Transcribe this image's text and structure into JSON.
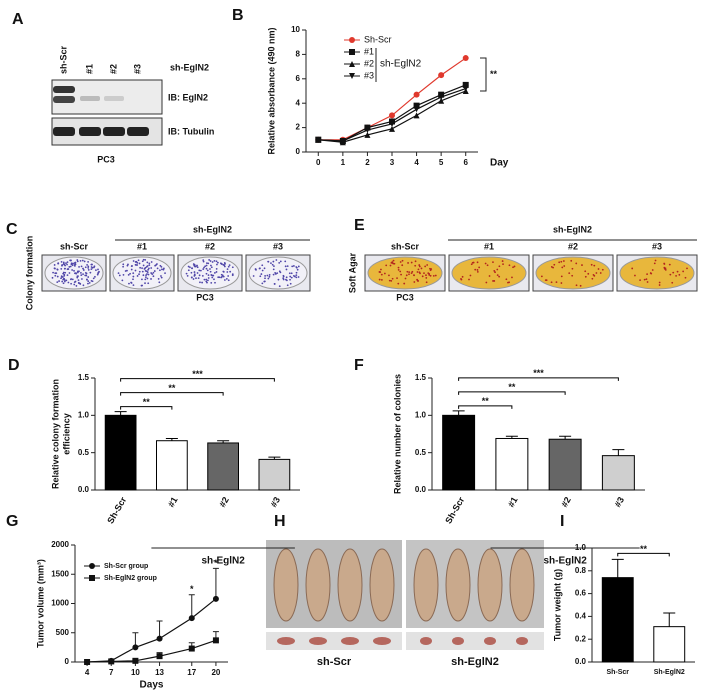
{
  "panel_labels": [
    "A",
    "B",
    "C",
    "D",
    "E",
    "F",
    "G",
    "H",
    "I"
  ],
  "blot": {
    "lanes": [
      "sh-Scr",
      "#1",
      "#2",
      "#3"
    ],
    "group": "sh-EglN2",
    "rows": [
      "IB: EglN2",
      "IB: Tubulin"
    ],
    "cell": "PC3"
  },
  "colony": {
    "ylabel": "Colony formation",
    "group": "sh-EglN2",
    "lanes": [
      "sh-Scr",
      "#1",
      "#2",
      "#3"
    ],
    "cell": "PC3"
  },
  "agar": {
    "ylabel": "Soft Agar",
    "group": "sh-EglN2",
    "lanes": [
      "sh-Scr",
      "#1",
      "#2",
      "#3"
    ],
    "cell": "PC3"
  },
  "xenograft": {
    "groups": [
      "sh-Scr",
      "sh-EglN2"
    ]
  },
  "chart_data": [
    {
      "type": "line",
      "ylabel": [
        "Relative absorbance (490 nm)"
      ],
      "xlabel": "Day",
      "x": [
        0,
        1,
        2,
        3,
        4,
        5,
        6
      ],
      "xlim": [
        -0.5,
        6.5
      ],
      "xticks": [
        0,
        1,
        2,
        3,
        4,
        5,
        6
      ],
      "ylim": [
        0,
        10
      ],
      "yticks": [
        0,
        2,
        4,
        6,
        8,
        10
      ],
      "series": [
        {
          "name": "Sh-Scr",
          "color": "#e0392d",
          "marker": "circle",
          "values": [
            1,
            1,
            2,
            3,
            4.7,
            6.3,
            7.7
          ]
        },
        {
          "name": "#1",
          "color": "#111111",
          "marker": "square",
          "values": [
            1,
            0.9,
            2.0,
            2.5,
            3.8,
            4.7,
            5.5
          ]
        },
        {
          "name": "#2",
          "color": "#111111",
          "marker": "triangle",
          "values": [
            1,
            0.8,
            1.4,
            1.9,
            3.0,
            4.2,
            5.0
          ]
        },
        {
          "name": "#3",
          "color": "#111111",
          "marker": "triangle-down",
          "values": [
            1,
            0.9,
            1.8,
            2.3,
            3.5,
            4.5,
            5.2
          ]
        }
      ],
      "legend_group": "sh-EglN2",
      "annotation": "**"
    },
    {
      "type": "bar",
      "ylabel": [
        "Relative colony formation",
        "efficiency"
      ],
      "categories": [
        "Sh-Scr",
        "#1",
        "#2",
        "#3"
      ],
      "values": [
        1.0,
        0.66,
        0.63,
        0.41
      ],
      "errors": [
        0.05,
        0.03,
        0.03,
        0.03
      ],
      "colors": [
        "#000000",
        "#ffffff",
        "#666666",
        "#cfcfcf"
      ],
      "ylim": [
        0,
        1.5
      ],
      "yticks": [
        {
          "value": 0,
          "label": "0.0"
        },
        0.5,
        {
          "value": 1,
          "label": "1.0"
        },
        1.5
      ],
      "annotations": [
        {
          "text": "**",
          "between": [
            "Sh-Scr",
            "#1"
          ]
        },
        {
          "text": "**",
          "between": [
            "Sh-Scr",
            "#2"
          ]
        },
        {
          "text": "***",
          "between": [
            "Sh-Scr",
            "#3"
          ]
        }
      ],
      "group": {
        "label": "sh-EglN2",
        "members": [
          "#1",
          "#2",
          "#3"
        ]
      }
    },
    {
      "type": "bar",
      "ylabel": [
        "Relative number of colonies"
      ],
      "categories": [
        "Sh-Scr",
        "#1",
        "#2",
        "#3"
      ],
      "values": [
        1.0,
        0.69,
        0.68,
        0.46
      ],
      "errors": [
        0.06,
        0.03,
        0.04,
        0.08
      ],
      "colors": [
        "#000000",
        "#ffffff",
        "#666666",
        "#cfcfcf"
      ],
      "ylim": [
        0,
        1.5
      ],
      "yticks": [
        {
          "value": 0,
          "label": "0.0"
        },
        0.5,
        {
          "value": 1,
          "label": "1.0"
        },
        1.5
      ],
      "annotations": [
        {
          "text": "**",
          "between": [
            "Sh-Scr",
            "#1"
          ]
        },
        {
          "text": "**",
          "between": [
            "Sh-Scr",
            "#2"
          ]
        },
        {
          "text": "***",
          "between": [
            "Sh-Scr",
            "#3"
          ]
        }
      ],
      "group": {
        "label": "sh-EglN2",
        "members": [
          "#1",
          "#2",
          "#3"
        ]
      }
    },
    {
      "type": "line",
      "ylabel": [
        "Tumor volume (mm³)"
      ],
      "xlabel": "Days",
      "x": [
        4,
        7,
        10,
        13,
        17,
        20
      ],
      "xlim": [
        2.5,
        21.5
      ],
      "xticks": [
        4,
        7,
        10,
        13,
        17,
        20
      ],
      "ylim": [
        0,
        2000
      ],
      "yticks": [
        0,
        500,
        1000,
        1500,
        2000
      ],
      "series": [
        {
          "name": "Sh-Scr group",
          "color": "#111111",
          "marker": "circle",
          "values": [
            0,
            20,
            250,
            400,
            750,
            1080
          ],
          "errors": [
            0,
            10,
            250,
            300,
            400,
            520
          ]
        },
        {
          "name": "Sh-EglN2 group",
          "color": "#111111",
          "marker": "square",
          "values": [
            0,
            10,
            20,
            100,
            230,
            370
          ],
          "errors": [
            0,
            5,
            10,
            60,
            100,
            150
          ]
        }
      ],
      "annotations": [
        {
          "text": "*",
          "x": 17
        },
        {
          "text": "*",
          "x": 20
        }
      ]
    },
    {
      "type": "bar",
      "ylabel": [
        "Tumor weight (g)"
      ],
      "categories": [
        "Sh-Scr",
        "Sh-EglN2"
      ],
      "values": [
        0.74,
        0.31
      ],
      "errors": [
        0.16,
        0.12
      ],
      "colors": [
        "#000000",
        "#ffffff"
      ],
      "ylim": [
        0,
        1.0
      ],
      "yticks": [
        {
          "value": 0,
          "label": "0.0"
        },
        0.2,
        0.4,
        0.6,
        0.8,
        {
          "value": 1,
          "label": "1.0"
        }
      ],
      "annotations": [
        {
          "text": "**",
          "between": [
            "Sh-Scr",
            "Sh-EglN2"
          ]
        }
      ]
    }
  ]
}
